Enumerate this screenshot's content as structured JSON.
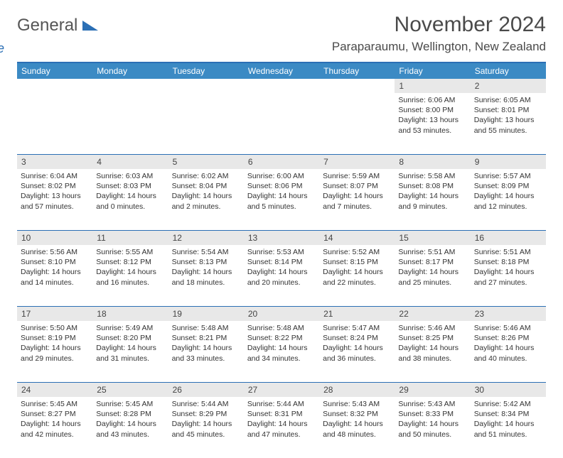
{
  "logo": {
    "word1": "General",
    "word2": "Blue"
  },
  "title": "November 2024",
  "location": "Paraparaumu, Wellington, New Zealand",
  "colors": {
    "header_bg": "#3b8ac4",
    "header_border": "#2b6fb5",
    "daynum_bg": "#e8e8e8",
    "text": "#333333",
    "logo_gray": "#555555",
    "logo_blue": "#2b6fb5"
  },
  "day_names": [
    "Sunday",
    "Monday",
    "Tuesday",
    "Wednesday",
    "Thursday",
    "Friday",
    "Saturday"
  ],
  "weeks": [
    [
      {
        "n": "",
        "lines": []
      },
      {
        "n": "",
        "lines": []
      },
      {
        "n": "",
        "lines": []
      },
      {
        "n": "",
        "lines": []
      },
      {
        "n": "",
        "lines": []
      },
      {
        "n": "1",
        "lines": [
          "Sunrise: 6:06 AM",
          "Sunset: 8:00 PM",
          "Daylight: 13 hours and 53 minutes."
        ]
      },
      {
        "n": "2",
        "lines": [
          "Sunrise: 6:05 AM",
          "Sunset: 8:01 PM",
          "Daylight: 13 hours and 55 minutes."
        ]
      }
    ],
    [
      {
        "n": "3",
        "lines": [
          "Sunrise: 6:04 AM",
          "Sunset: 8:02 PM",
          "Daylight: 13 hours and 57 minutes."
        ]
      },
      {
        "n": "4",
        "lines": [
          "Sunrise: 6:03 AM",
          "Sunset: 8:03 PM",
          "Daylight: 14 hours and 0 minutes."
        ]
      },
      {
        "n": "5",
        "lines": [
          "Sunrise: 6:02 AM",
          "Sunset: 8:04 PM",
          "Daylight: 14 hours and 2 minutes."
        ]
      },
      {
        "n": "6",
        "lines": [
          "Sunrise: 6:00 AM",
          "Sunset: 8:06 PM",
          "Daylight: 14 hours and 5 minutes."
        ]
      },
      {
        "n": "7",
        "lines": [
          "Sunrise: 5:59 AM",
          "Sunset: 8:07 PM",
          "Daylight: 14 hours and 7 minutes."
        ]
      },
      {
        "n": "8",
        "lines": [
          "Sunrise: 5:58 AM",
          "Sunset: 8:08 PM",
          "Daylight: 14 hours and 9 minutes."
        ]
      },
      {
        "n": "9",
        "lines": [
          "Sunrise: 5:57 AM",
          "Sunset: 8:09 PM",
          "Daylight: 14 hours and 12 minutes."
        ]
      }
    ],
    [
      {
        "n": "10",
        "lines": [
          "Sunrise: 5:56 AM",
          "Sunset: 8:10 PM",
          "Daylight: 14 hours and 14 minutes."
        ]
      },
      {
        "n": "11",
        "lines": [
          "Sunrise: 5:55 AM",
          "Sunset: 8:12 PM",
          "Daylight: 14 hours and 16 minutes."
        ]
      },
      {
        "n": "12",
        "lines": [
          "Sunrise: 5:54 AM",
          "Sunset: 8:13 PM",
          "Daylight: 14 hours and 18 minutes."
        ]
      },
      {
        "n": "13",
        "lines": [
          "Sunrise: 5:53 AM",
          "Sunset: 8:14 PM",
          "Daylight: 14 hours and 20 minutes."
        ]
      },
      {
        "n": "14",
        "lines": [
          "Sunrise: 5:52 AM",
          "Sunset: 8:15 PM",
          "Daylight: 14 hours and 22 minutes."
        ]
      },
      {
        "n": "15",
        "lines": [
          "Sunrise: 5:51 AM",
          "Sunset: 8:17 PM",
          "Daylight: 14 hours and 25 minutes."
        ]
      },
      {
        "n": "16",
        "lines": [
          "Sunrise: 5:51 AM",
          "Sunset: 8:18 PM",
          "Daylight: 14 hours and 27 minutes."
        ]
      }
    ],
    [
      {
        "n": "17",
        "lines": [
          "Sunrise: 5:50 AM",
          "Sunset: 8:19 PM",
          "Daylight: 14 hours and 29 minutes."
        ]
      },
      {
        "n": "18",
        "lines": [
          "Sunrise: 5:49 AM",
          "Sunset: 8:20 PM",
          "Daylight: 14 hours and 31 minutes."
        ]
      },
      {
        "n": "19",
        "lines": [
          "Sunrise: 5:48 AM",
          "Sunset: 8:21 PM",
          "Daylight: 14 hours and 33 minutes."
        ]
      },
      {
        "n": "20",
        "lines": [
          "Sunrise: 5:48 AM",
          "Sunset: 8:22 PM",
          "Daylight: 14 hours and 34 minutes."
        ]
      },
      {
        "n": "21",
        "lines": [
          "Sunrise: 5:47 AM",
          "Sunset: 8:24 PM",
          "Daylight: 14 hours and 36 minutes."
        ]
      },
      {
        "n": "22",
        "lines": [
          "Sunrise: 5:46 AM",
          "Sunset: 8:25 PM",
          "Daylight: 14 hours and 38 minutes."
        ]
      },
      {
        "n": "23",
        "lines": [
          "Sunrise: 5:46 AM",
          "Sunset: 8:26 PM",
          "Daylight: 14 hours and 40 minutes."
        ]
      }
    ],
    [
      {
        "n": "24",
        "lines": [
          "Sunrise: 5:45 AM",
          "Sunset: 8:27 PM",
          "Daylight: 14 hours and 42 minutes."
        ]
      },
      {
        "n": "25",
        "lines": [
          "Sunrise: 5:45 AM",
          "Sunset: 8:28 PM",
          "Daylight: 14 hours and 43 minutes."
        ]
      },
      {
        "n": "26",
        "lines": [
          "Sunrise: 5:44 AM",
          "Sunset: 8:29 PM",
          "Daylight: 14 hours and 45 minutes."
        ]
      },
      {
        "n": "27",
        "lines": [
          "Sunrise: 5:44 AM",
          "Sunset: 8:31 PM",
          "Daylight: 14 hours and 47 minutes."
        ]
      },
      {
        "n": "28",
        "lines": [
          "Sunrise: 5:43 AM",
          "Sunset: 8:32 PM",
          "Daylight: 14 hours and 48 minutes."
        ]
      },
      {
        "n": "29",
        "lines": [
          "Sunrise: 5:43 AM",
          "Sunset: 8:33 PM",
          "Daylight: 14 hours and 50 minutes."
        ]
      },
      {
        "n": "30",
        "lines": [
          "Sunrise: 5:42 AM",
          "Sunset: 8:34 PM",
          "Daylight: 14 hours and 51 minutes."
        ]
      }
    ]
  ]
}
